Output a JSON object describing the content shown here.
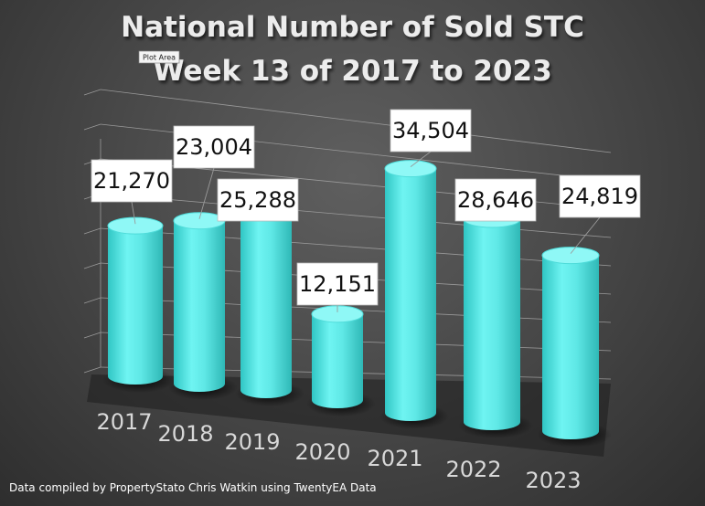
{
  "title_line1": "National Number of  Sold STC",
  "title_line2": "Week 13 of 2017 to 2023",
  "tooltip": "Plot Area",
  "footer": "Data compiled by PropertyStato Chris Watkin using TwentyEA Data",
  "colors": {
    "bar": "#5ff0ee",
    "bar_dark": "#2cc4c2",
    "bar_top": "#8ff8f6",
    "background": "#4a4a4a"
  },
  "chart_data": {
    "type": "bar",
    "title": "National Number of  Sold STC Week 13 of 2017 to 2023",
    "categories": [
      "2017",
      "2018",
      "2019",
      "2020",
      "2021",
      "2022",
      "2023"
    ],
    "values": [
      21270,
      23004,
      25288,
      12151,
      34504,
      28646,
      24819
    ],
    "value_labels": [
      "21,270",
      "23,004",
      "25,288",
      "12,151",
      "34,504",
      "28,646",
      "24,819"
    ],
    "ylim": [
      0,
      40000
    ],
    "grid": true,
    "legend": "none",
    "style": "3d-cylinder"
  }
}
